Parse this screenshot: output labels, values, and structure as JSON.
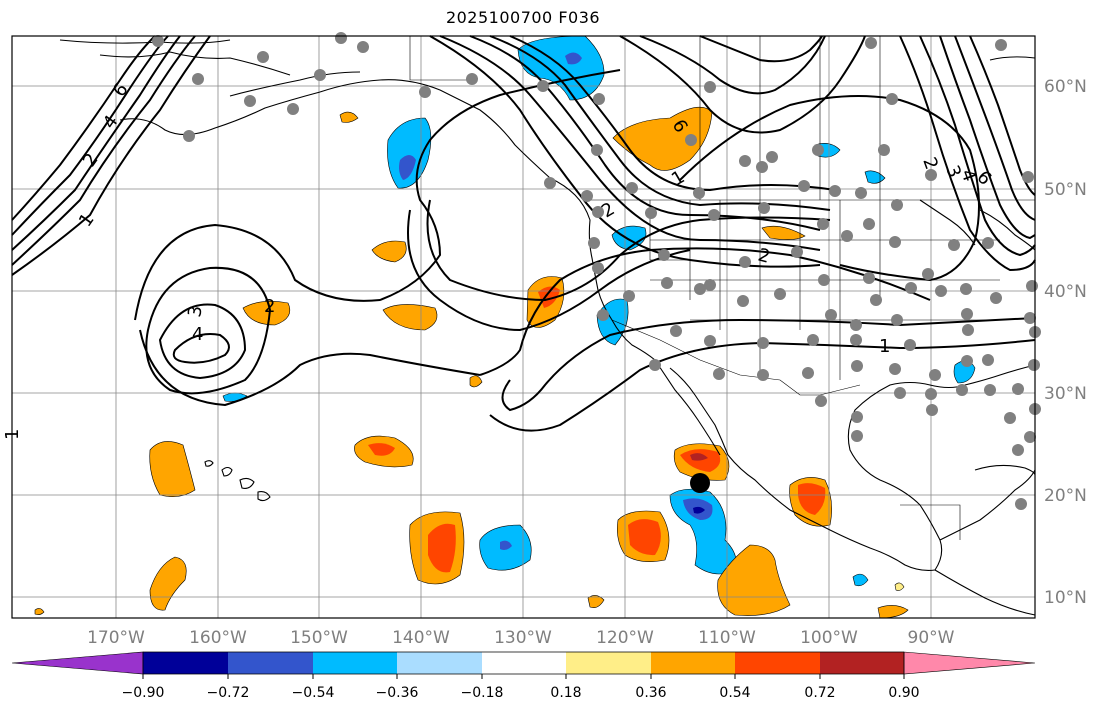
{
  "title": "2025100700 F036",
  "longitude_labels": [
    "170°W",
    "160°W",
    "150°W",
    "140°W",
    "130°W",
    "120°W",
    "110°W",
    "100°W",
    "90°W"
  ],
  "latitude_labels": [
    "60°N",
    "50°N",
    "40°N",
    "30°N",
    "20°N",
    "10°N"
  ],
  "colorbar": {
    "ticks": [
      "−0.90",
      "−0.72",
      "−0.54",
      "−0.36",
      "−0.18",
      "0.18",
      "0.36",
      "0.54",
      "0.72",
      "0.90"
    ],
    "colors": [
      "#9933cc",
      "#000099",
      "#3355cc",
      "#00bbff",
      "#aaddff",
      "#ffffff",
      "#ffee88",
      "#ffa500",
      "#ff4500",
      "#b22222",
      "#ff88aa"
    ]
  },
  "contour_labels": [
    "6",
    "4",
    "2",
    "1",
    "3",
    "4",
    "2",
    "2",
    "1",
    "2",
    "3",
    "4",
    "6",
    "2",
    "1",
    "6",
    "1"
  ],
  "fill_colors": {
    "orange": "#ffa500",
    "red": "#ff4500",
    "darkred": "#b22222",
    "lightblue": "#00bbff",
    "blue": "#3355cc",
    "navy": "#000099",
    "grey_dot": "#808080"
  }
}
